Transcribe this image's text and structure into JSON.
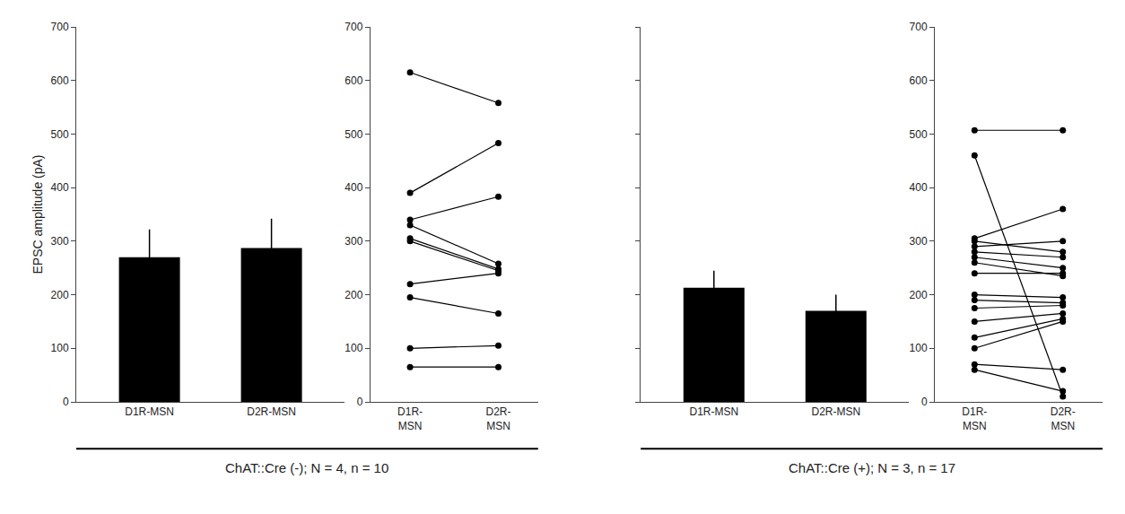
{
  "chart_data": [
    {
      "type": "bar",
      "categories": [
        "D1R-MSN",
        "D2R-MSN"
      ],
      "values": [
        270,
        287
      ],
      "errors": [
        52,
        55
      ],
      "color": "#000000",
      "ylabel": "EPSC amplitude (pA)",
      "xlabel": "ChAT::Cre (-); N = 4, n = 10",
      "ylim": [
        0,
        700
      ],
      "yticks": [
        0,
        100,
        200,
        300,
        400,
        500,
        600,
        700
      ],
      "grid": false
    },
    {
      "type": "scatter",
      "categories": [
        "D1R-\nMSN",
        "D2R-\nMSN"
      ],
      "series": [
        {
          "values": [
            615,
            558
          ]
        },
        {
          "values": [
            390,
            483
          ]
        },
        {
          "values": [
            340,
            383
          ]
        },
        {
          "values": [
            330,
            258
          ]
        },
        {
          "values": [
            305,
            248
          ]
        },
        {
          "values": [
            300,
            245
          ]
        },
        {
          "values": [
            220,
            240
          ]
        },
        {
          "values": [
            195,
            165
          ]
        },
        {
          "values": [
            100,
            105
          ]
        },
        {
          "values": [
            65,
            65
          ]
        }
      ],
      "color": "#000000",
      "marker": "circle",
      "line_style": "solid",
      "ylim": [
        0,
        700
      ],
      "yticks": [
        0,
        100,
        200,
        300,
        400,
        500,
        600,
        700
      ],
      "grid": false
    },
    {
      "type": "bar",
      "categories": [
        "D1R-MSN",
        "D2R-MSN"
      ],
      "values": [
        213,
        170
      ],
      "errors": [
        32,
        30
      ],
      "color": "#000000",
      "xlabel": "ChAT::Cre (+); N = 3, n = 17",
      "ylim": [
        0,
        700
      ],
      "yticks": [
        0,
        100,
        200,
        300,
        400,
        500,
        600,
        700
      ],
      "tick_labels": "x",
      "grid": false
    },
    {
      "type": "scatter",
      "categories": [
        "D1R-\nMSN",
        "D2R-\nMSN"
      ],
      "series": [
        {
          "values": [
            507,
            507
          ]
        },
        {
          "values": [
            460,
            10
          ]
        },
        {
          "values": [
            305,
            360
          ]
        },
        {
          "values": [
            300,
            280
          ]
        },
        {
          "values": [
            290,
            300
          ]
        },
        {
          "values": [
            280,
            270
          ]
        },
        {
          "values": [
            270,
            250
          ]
        },
        {
          "values": [
            260,
            235
          ]
        },
        {
          "values": [
            240,
            240
          ]
        },
        {
          "values": [
            200,
            195
          ]
        },
        {
          "values": [
            190,
            185
          ]
        },
        {
          "values": [
            175,
            180
          ]
        },
        {
          "values": [
            150,
            165
          ]
        },
        {
          "values": [
            120,
            155
          ]
        },
        {
          "values": [
            100,
            150
          ]
        },
        {
          "values": [
            70,
            60
          ]
        },
        {
          "values": [
            60,
            20
          ]
        }
      ],
      "color": "#000000",
      "marker": "circle",
      "line_style": "solid",
      "ylim": [
        0,
        700
      ],
      "yticks": [
        0,
        100,
        200,
        300,
        400,
        500,
        600,
        700
      ],
      "grid": false
    }
  ]
}
